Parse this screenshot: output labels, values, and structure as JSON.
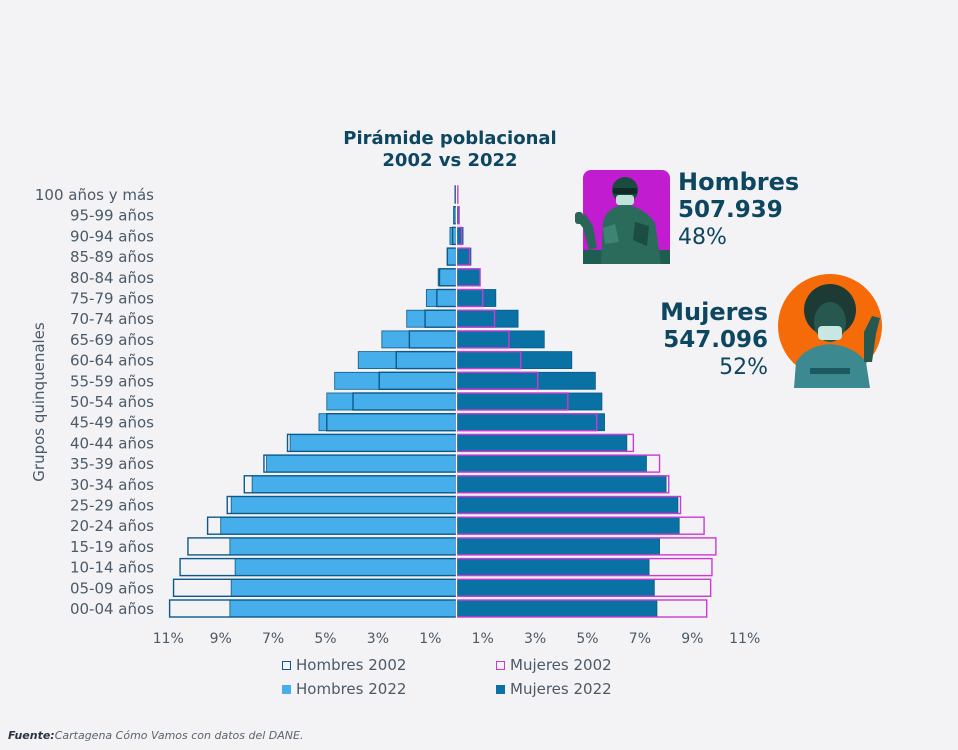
{
  "chart_data": {
    "type": "population-pyramid",
    "title": [
      "Pirámide poblacional",
      "2002 vs 2022"
    ],
    "ylabel": "Grupos quinquenales",
    "categories": [
      "100 años y más",
      "95-99 años",
      "90-94 años",
      "85-89 años",
      "80-84 años",
      "75-79 años",
      "70-74 años",
      "65-69 años",
      "60-64 años",
      "55-59 años",
      "50-54 años",
      "45-49 años",
      "40-44 años",
      "35-39 años",
      "30-34 años",
      "25-29 años",
      "20-24 años",
      "15-19 años",
      "10-14 años",
      "05-09 años",
      "00-04 años"
    ],
    "x_ticks": [
      "11%",
      "9%",
      "7%",
      "5%",
      "3%",
      "1%",
      "1%",
      "3%",
      "5%",
      "7%",
      "9%",
      "11%"
    ],
    "xlim": [
      -11,
      11
    ],
    "series": [
      {
        "name": "Hombres 2002",
        "side": "left",
        "style": "outline",
        "color": "#0d5a8a",
        "values": [
          0.05,
          0.1,
          0.15,
          0.35,
          0.65,
          0.75,
          1.2,
          1.8,
          2.3,
          2.95,
          3.95,
          4.95,
          6.45,
          7.35,
          8.1,
          8.75,
          9.5,
          10.25,
          10.55,
          10.8,
          10.95
        ]
      },
      {
        "name": "Hombres 2022",
        "side": "left",
        "style": "fill",
        "color": "#46aeea",
        "values": [
          0.05,
          0.1,
          0.25,
          0.35,
          0.7,
          1.15,
          1.9,
          2.85,
          3.75,
          4.65,
          4.95,
          5.25,
          6.35,
          7.25,
          7.8,
          8.6,
          9.0,
          8.65,
          8.45,
          8.6,
          8.65
        ]
      },
      {
        "name": "Mujeres 2002",
        "side": "right",
        "style": "outline",
        "color": "#cc3ad2",
        "values": [
          0.05,
          0.1,
          0.2,
          0.5,
          0.9,
          1.0,
          1.45,
          2.0,
          2.45,
          3.1,
          4.25,
          5.35,
          6.75,
          7.75,
          8.1,
          8.55,
          9.45,
          9.9,
          9.75,
          9.7,
          9.55
        ]
      },
      {
        "name": "Mujeres 2022",
        "side": "right",
        "style": "fill",
        "color": "#0a71a5",
        "values": [
          0.05,
          0.1,
          0.25,
          0.55,
          0.9,
          1.5,
          2.35,
          3.35,
          4.4,
          5.3,
          5.55,
          5.65,
          6.5,
          7.25,
          8.0,
          8.45,
          8.5,
          7.75,
          7.35,
          7.55,
          7.65
        ]
      }
    ],
    "legend": [
      "Hombres 2002",
      "Mujeres 2002",
      "Hombres 2022",
      "Mujeres 2022"
    ],
    "legend_position": "bottom"
  },
  "stats": {
    "men": {
      "label": "Hombres",
      "value": "507.939",
      "pct": "48%"
    },
    "women": {
      "label": "Mujeres",
      "value": "547.096",
      "pct": "52%"
    }
  },
  "source": {
    "label": "Fuente:",
    "text": "Cartagena Cómo Vamos con datos del DANE."
  },
  "colors": {
    "accent_dark": "#0d4660",
    "men_photo_bg": "#c11ccf",
    "women_photo_bg": "#f56b0a"
  },
  "icons": [
    "man-photo-icon",
    "woman-photo-icon"
  ]
}
